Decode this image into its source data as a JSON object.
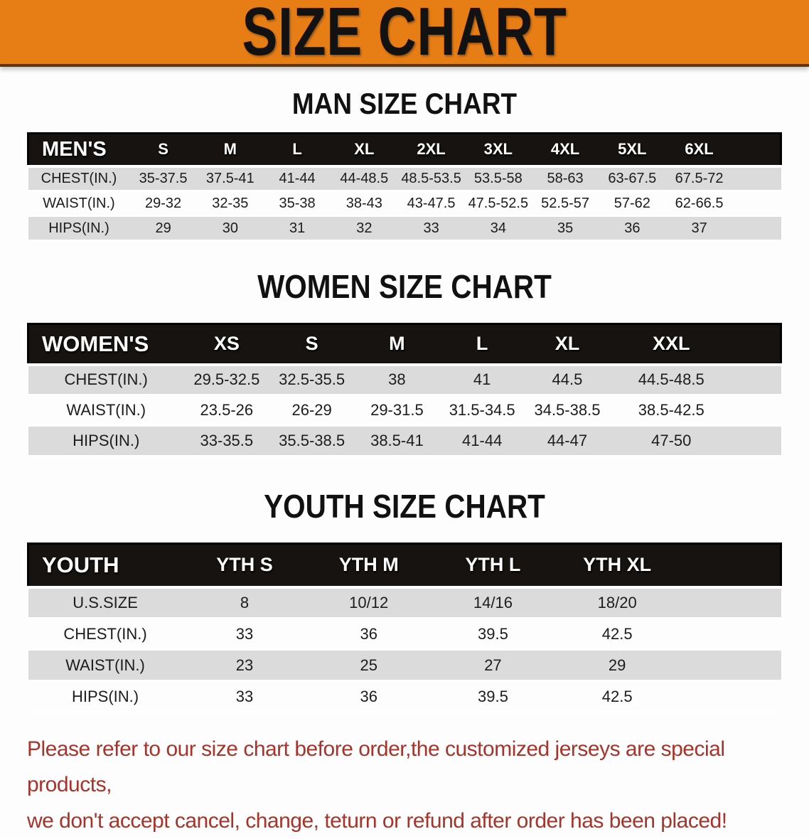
{
  "banner": {
    "title": "SIZE CHART",
    "bg_color": "#e67d15"
  },
  "theme": {
    "banner_bg": "#e67d15",
    "table_header_bg": "#161310",
    "row_alt_bg": "#dbdbdb",
    "disclaimer_color": "#a5342b"
  },
  "sections": {
    "men": {
      "heading": "MAN SIZE CHART",
      "table": {
        "header_label": "MEN'S",
        "columns": [
          "S",
          "M",
          "L",
          "XL",
          "2XL",
          "3XL",
          "4XL",
          "5XL",
          "6XL"
        ],
        "rows": [
          {
            "label": "CHEST(IN.)",
            "values": [
              "35-37.5",
              "37.5-41",
              "41-44",
              "44-48.5",
              "48.5-53.5",
              "53.5-58",
              "58-63",
              "63-67.5",
              "67.5-72"
            ]
          },
          {
            "label": "WAIST(IN.)",
            "values": [
              "29-32",
              "32-35",
              "35-38",
              "38-43",
              "43-47.5",
              "47.5-52.5",
              "52.5-57",
              "57-62",
              "62-66.5"
            ]
          },
          {
            "label": "HIPS(IN.)",
            "values": [
              "29",
              "30",
              "31",
              "32",
              "33",
              "34",
              "35",
              "36",
              "37"
            ]
          }
        ]
      }
    },
    "women": {
      "heading": "WOMEN SIZE CHART",
      "table": {
        "header_label": "WOMEN'S",
        "columns": [
          "XS",
          "S",
          "M",
          "L",
          "XL",
          "XXL"
        ],
        "rows": [
          {
            "label": "CHEST(IN.)",
            "values": [
              "29.5-32.5",
              "32.5-35.5",
              "38",
              "41",
              "44.5",
              "44.5-48.5"
            ]
          },
          {
            "label": "WAIST(IN.)",
            "values": [
              "23.5-26",
              "26-29",
              "29-31.5",
              "31.5-34.5",
              "34.5-38.5",
              "38.5-42.5"
            ]
          },
          {
            "label": "HIPS(IN.)",
            "values": [
              "33-35.5",
              "35.5-38.5",
              "38.5-41",
              "41-44",
              "44-47",
              "47-50"
            ]
          }
        ]
      }
    },
    "youth": {
      "heading": "YOUTH SIZE CHART",
      "table": {
        "header_label": "YOUTH",
        "columns": [
          "YTH S",
          "YTH M",
          "YTH L",
          "YTH XL"
        ],
        "rows": [
          {
            "label": "U.S.SIZE",
            "values": [
              "8",
              "10/12",
              "14/16",
              "18/20"
            ]
          },
          {
            "label": "CHEST(IN.)",
            "values": [
              "33",
              "36",
              "39.5",
              "42.5"
            ]
          },
          {
            "label": "WAIST(IN.)",
            "values": [
              "23",
              "25",
              "27",
              "29"
            ]
          },
          {
            "label": "HIPS(IN.)",
            "values": [
              "33",
              "36",
              "39.5",
              "42.5"
            ]
          }
        ]
      }
    }
  },
  "disclaimer": {
    "line1": "Please refer to our size chart before order,the customized jerseys are special products,",
    "line2": "we don't accept cancel, change, teturn or refund after order has been placed!"
  }
}
